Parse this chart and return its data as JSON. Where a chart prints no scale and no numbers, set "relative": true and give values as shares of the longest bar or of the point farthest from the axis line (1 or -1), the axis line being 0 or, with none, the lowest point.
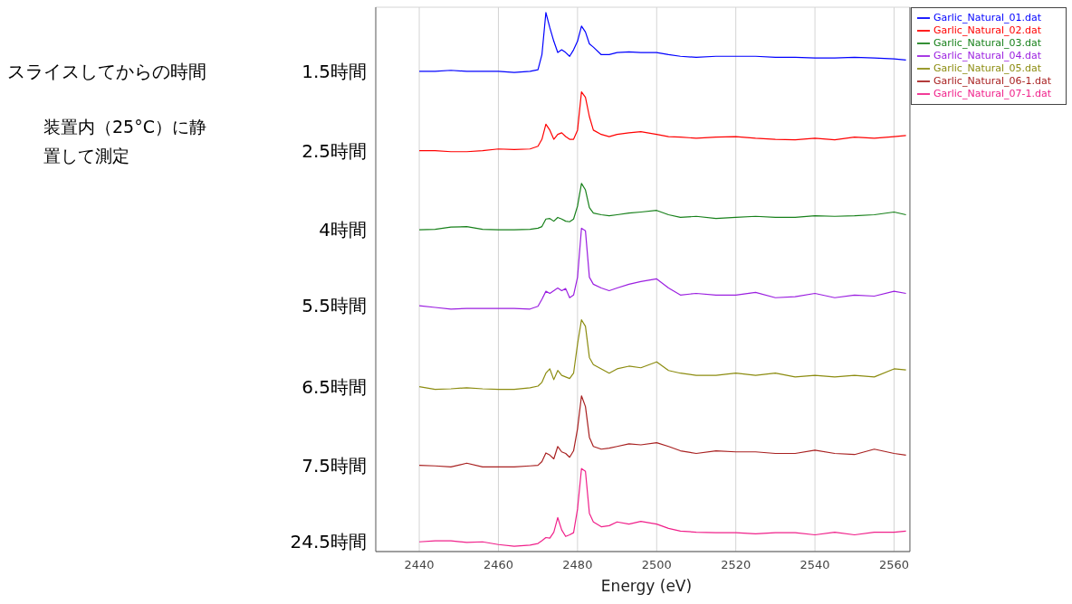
{
  "chart_data": {
    "type": "line",
    "relative": true,
    "xlabel": "Energy (eV)",
    "x": [
      2440,
      2444,
      2448,
      2452,
      2456,
      2460,
      2464,
      2468,
      2470,
      2471,
      2472,
      2473,
      2474,
      2475,
      2476,
      2477,
      2478,
      2479,
      2480,
      2481,
      2482,
      2483,
      2484,
      2486,
      2488,
      2490,
      2493,
      2496,
      2500,
      2503,
      2506,
      2510,
      2515,
      2520,
      2525,
      2530,
      2535,
      2540,
      2545,
      2550,
      2555,
      2560,
      2563
    ],
    "xlim": [
      2429,
      2564
    ],
    "xticks": [
      2440,
      2460,
      2480,
      2500,
      2520,
      2540,
      2560
    ],
    "grid": true,
    "legend": "right",
    "marker": "none",
    "line_style": "solid",
    "series": [
      {
        "name": "Garlic_Natural_01.dat",
        "color": "#0000ff",
        "values": [
          0.891,
          0.891,
          0.893,
          0.891,
          0.891,
          0.891,
          0.889,
          0.891,
          0.894,
          0.922,
          1,
          0.972,
          0.947,
          0.926,
          0.931,
          0.926,
          0.919,
          0.931,
          0.947,
          0.975,
          0.964,
          0.942,
          0.936,
          0.922,
          0.922,
          0.926,
          0.927,
          0.926,
          0.926,
          0.922,
          0.919,
          0.917,
          0.919,
          0.919,
          0.919,
          0.917,
          0.917,
          0.916,
          0.916,
          0.917,
          0.916,
          0.914,
          0.912
        ]
      },
      {
        "name": "Garlic_Natural_02.dat",
        "color": "#ff0000",
        "values": [
          0.744,
          0.744,
          0.742,
          0.742,
          0.744,
          0.747,
          0.746,
          0.747,
          0.752,
          0.765,
          0.793,
          0.782,
          0.765,
          0.774,
          0.777,
          0.77,
          0.765,
          0.765,
          0.782,
          0.853,
          0.843,
          0.807,
          0.782,
          0.774,
          0.77,
          0.774,
          0.777,
          0.779,
          0.774,
          0.77,
          0.769,
          0.767,
          0.769,
          0.77,
          0.767,
          0.765,
          0.764,
          0.767,
          0.764,
          0.769,
          0.767,
          0.77,
          0.772
        ]
      },
      {
        "name": "Garlic_Natural_03.dat",
        "color": "#17801a",
        "values": [
          0.597,
          0.598,
          0.602,
          0.603,
          0.598,
          0.597,
          0.597,
          0.598,
          0.6,
          0.603,
          0.617,
          0.618,
          0.613,
          0.62,
          0.617,
          0.613,
          0.612,
          0.617,
          0.641,
          0.683,
          0.671,
          0.638,
          0.628,
          0.625,
          0.623,
          0.625,
          0.628,
          0.63,
          0.633,
          0.625,
          0.62,
          0.622,
          0.618,
          0.62,
          0.622,
          0.62,
          0.62,
          0.623,
          0.622,
          0.623,
          0.625,
          0.63,
          0.625
        ]
      },
      {
        "name": "Garlic_Natural_04.dat",
        "color": "#9b1fe0",
        "values": [
          0.456,
          0.453,
          0.45,
          0.451,
          0.451,
          0.451,
          0.451,
          0.45,
          0.455,
          0.468,
          0.483,
          0.479,
          0.484,
          0.489,
          0.484,
          0.488,
          0.471,
          0.476,
          0.509,
          0.6,
          0.595,
          0.509,
          0.496,
          0.489,
          0.484,
          0.489,
          0.496,
          0.501,
          0.506,
          0.489,
          0.476,
          0.479,
          0.476,
          0.476,
          0.481,
          0.471,
          0.473,
          0.479,
          0.471,
          0.476,
          0.474,
          0.483,
          0.479
        ]
      },
      {
        "name": "Garlic_Natural_05.dat",
        "color": "#8c8c10",
        "values": [
          0.306,
          0.301,
          0.302,
          0.304,
          0.302,
          0.301,
          0.301,
          0.304,
          0.307,
          0.314,
          0.331,
          0.339,
          0.319,
          0.336,
          0.327,
          0.324,
          0.321,
          0.331,
          0.385,
          0.43,
          0.418,
          0.36,
          0.347,
          0.339,
          0.331,
          0.339,
          0.344,
          0.341,
          0.352,
          0.336,
          0.331,
          0.327,
          0.327,
          0.331,
          0.327,
          0.331,
          0.324,
          0.327,
          0.324,
          0.327,
          0.324,
          0.339,
          0.337
        ]
      },
      {
        "name": "Garlic_Natural_06-1.dat",
        "color": "#a82020",
        "values": [
          0.16,
          0.159,
          0.157,
          0.164,
          0.157,
          0.157,
          0.157,
          0.159,
          0.16,
          0.167,
          0.183,
          0.179,
          0.172,
          0.195,
          0.185,
          0.182,
          0.175,
          0.187,
          0.228,
          0.289,
          0.269,
          0.212,
          0.195,
          0.19,
          0.192,
          0.195,
          0.2,
          0.198,
          0.202,
          0.195,
          0.187,
          0.182,
          0.187,
          0.185,
          0.185,
          0.182,
          0.182,
          0.188,
          0.182,
          0.18,
          0.19,
          0.182,
          0.179
        ]
      },
      {
        "name": "Garlic_Natural_07-1.dat",
        "color": "#f0208a",
        "values": [
          0.018,
          0.02,
          0.02,
          0.017,
          0.018,
          0.013,
          0.01,
          0.012,
          0.015,
          0.02,
          0.026,
          0.025,
          0.036,
          0.063,
          0.04,
          0.028,
          0.031,
          0.035,
          0.079,
          0.154,
          0.149,
          0.071,
          0.055,
          0.046,
          0.048,
          0.055,
          0.051,
          0.056,
          0.051,
          0.043,
          0.038,
          0.036,
          0.035,
          0.035,
          0.033,
          0.035,
          0.035,
          0.031,
          0.036,
          0.031,
          0.036,
          0.036,
          0.038
        ]
      }
    ],
    "annotations": [
      "スライスしてからの時間",
      "装置内（25°C）に静置して測定",
      "1.5時間",
      "2.5時間",
      "4時間",
      "5.5時間",
      "6.5時間",
      "7.5時間",
      "24.5時間"
    ]
  }
}
